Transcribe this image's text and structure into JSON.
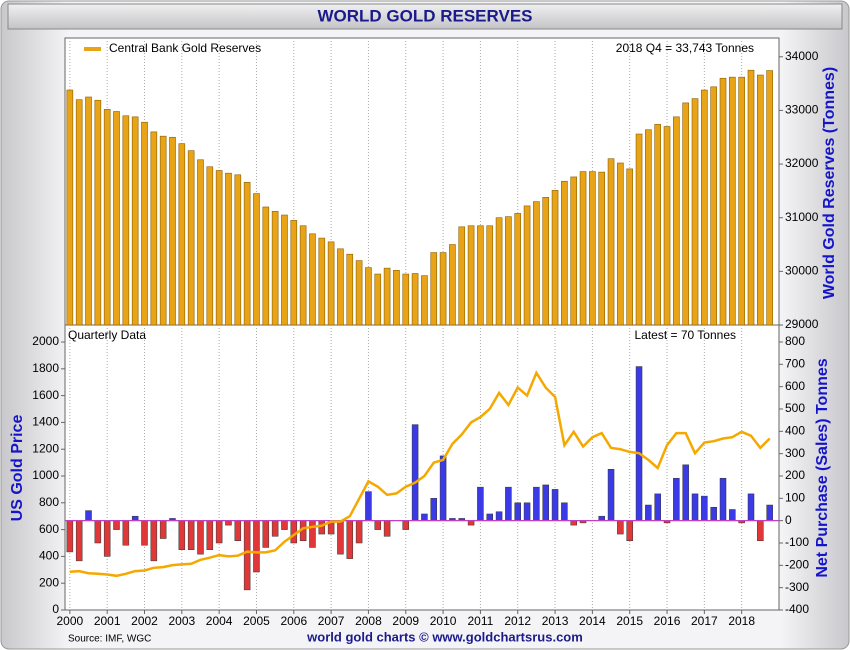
{
  "chart_data": [
    {
      "type": "bar",
      "title": "WORLD GOLD RESERVES",
      "ylabel": "World Gold Reserves (Tonnes)",
      "annotation": "2018 Q4 = 33,743 Tonnes",
      "x": [
        2000,
        2000.25,
        2000.5,
        2000.75,
        2001,
        2001.25,
        2001.5,
        2001.75,
        2002,
        2002.25,
        2002.5,
        2002.75,
        2003,
        2003.25,
        2003.5,
        2003.75,
        2004,
        2004.25,
        2004.5,
        2004.75,
        2005,
        2005.25,
        2005.5,
        2005.75,
        2006,
        2006.25,
        2006.5,
        2006.75,
        2007,
        2007.25,
        2007.5,
        2007.75,
        2008,
        2008.25,
        2008.5,
        2008.75,
        2009,
        2009.25,
        2009.5,
        2009.75,
        2010,
        2010.25,
        2010.5,
        2010.75,
        2011,
        2011.25,
        2011.5,
        2011.75,
        2012,
        2012.25,
        2012.5,
        2012.75,
        2013,
        2013.25,
        2013.5,
        2013.75,
        2014,
        2014.25,
        2014.5,
        2014.75,
        2015,
        2015.25,
        2015.5,
        2015.75,
        2016,
        2016.25,
        2016.5,
        2016.75,
        2017,
        2017.25,
        2017.5,
        2017.75,
        2018,
        2018.25,
        2018.5,
        2018.75
      ],
      "series": [
        {
          "name": "Central Bank Gold Reserves",
          "color": "#e8a317",
          "values": [
            33380,
            33200,
            33250,
            33190,
            33020,
            32980,
            32900,
            32880,
            32780,
            32600,
            32520,
            32500,
            32380,
            32250,
            32080,
            31950,
            31880,
            31830,
            31800,
            31660,
            31450,
            31200,
            31120,
            31050,
            30950,
            30850,
            30700,
            30620,
            30550,
            30420,
            30320,
            30200,
            30070,
            29950,
            30060,
            30020,
            29950,
            29960,
            29920,
            30350,
            30350,
            30500,
            30830,
            30850,
            30850,
            30850,
            31000,
            31020,
            31080,
            31220,
            31300,
            31380,
            31510,
            31680,
            31760,
            31860,
            31860,
            31850,
            32100,
            32020,
            31910,
            32560,
            32640,
            32740,
            32700,
            32880,
            33140,
            33220,
            33380,
            33440,
            33600,
            33620,
            33620,
            33750,
            33660,
            33743
          ]
        }
      ],
      "xlim": [
        1999.87,
        2019.0
      ],
      "xticks": [
        2000,
        2001,
        2002,
        2003,
        2004,
        2005,
        2006,
        2007,
        2008,
        2009,
        2010,
        2011,
        2012,
        2013,
        2014,
        2015,
        2016,
        2017,
        2018
      ],
      "ylim": [
        29000,
        34350
      ],
      "yticks": [
        29000,
        30000,
        31000,
        32000,
        33000,
        34000
      ],
      "grid": true
    },
    {
      "type": "bar_line",
      "ylabel": "US Gold Price",
      "y2label": "Net Purchase (Sales) Tonnes",
      "annotation_left": "Quarterly Data",
      "annotation_right": "Latest = 70 Tonnes",
      "source": "Source: IMF, WGC",
      "footer": "world gold charts © www.goldchartsrus.com",
      "x": [
        2000,
        2000.25,
        2000.5,
        2000.75,
        2001,
        2001.25,
        2001.5,
        2001.75,
        2002,
        2002.25,
        2002.5,
        2002.75,
        2003,
        2003.25,
        2003.5,
        2003.75,
        2004,
        2004.25,
        2004.5,
        2004.75,
        2005,
        2005.25,
        2005.5,
        2005.75,
        2006,
        2006.25,
        2006.5,
        2006.75,
        2007,
        2007.25,
        2007.5,
        2007.75,
        2008,
        2008.25,
        2008.5,
        2008.75,
        2009,
        2009.25,
        2009.5,
        2009.75,
        2010,
        2010.25,
        2010.5,
        2010.75,
        2011,
        2011.25,
        2011.5,
        2011.75,
        2012,
        2012.25,
        2012.5,
        2012.75,
        2013,
        2013.25,
        2013.5,
        2013.75,
        2014,
        2014.25,
        2014.5,
        2014.75,
        2015,
        2015.25,
        2015.5,
        2015.75,
        2016,
        2016.25,
        2016.5,
        2016.75,
        2017,
        2017.25,
        2017.5,
        2017.75,
        2018,
        2018.25,
        2018.5,
        2018.75
      ],
      "series": [
        {
          "type": "line",
          "color": "#f5a800",
          "values": [
            285,
            290,
            275,
            270,
            265,
            255,
            270,
            290,
            295,
            315,
            320,
            335,
            340,
            345,
            375,
            390,
            410,
            400,
            405,
            435,
            430,
            430,
            445,
            510,
            560,
            610,
            620,
            630,
            660,
            660,
            700,
            830,
            960,
            920,
            860,
            870,
            920,
            950,
            1000,
            1100,
            1120,
            1240,
            1310,
            1400,
            1440,
            1500,
            1620,
            1530,
            1660,
            1600,
            1770,
            1660,
            1590,
            1230,
            1330,
            1220,
            1290,
            1320,
            1210,
            1200,
            1180,
            1170,
            1120,
            1060,
            1230,
            1320,
            1320,
            1170,
            1250,
            1260,
            1280,
            1290,
            1330,
            1300,
            1210,
            1280
          ]
        },
        {
          "type": "bar",
          "axis": "y2",
          "color": "#3a3ae6",
          "negative_color": "#e03838",
          "values": [
            -140,
            -180,
            45,
            -100,
            -160,
            -40,
            -110,
            20,
            -110,
            -180,
            -80,
            10,
            -130,
            -130,
            -150,
            -130,
            -100,
            -20,
            -90,
            -310,
            -230,
            -120,
            -70,
            -40,
            -100,
            -90,
            -120,
            -60,
            -60,
            -150,
            -170,
            -100,
            130,
            -40,
            -70,
            0,
            -40,
            430,
            30,
            100,
            290,
            10,
            10,
            -20,
            150,
            30,
            40,
            150,
            80,
            80,
            150,
            160,
            140,
            80,
            -20,
            -10,
            0,
            20,
            230,
            -60,
            -90,
            690,
            70,
            120,
            -10,
            190,
            250,
            120,
            110,
            60,
            190,
            50,
            -10,
            120,
            -90,
            70
          ]
        }
      ],
      "xlim": [
        1999.87,
        2019.0
      ],
      "xticks": [
        2000,
        2001,
        2002,
        2003,
        2004,
        2005,
        2006,
        2007,
        2008,
        2009,
        2010,
        2011,
        2012,
        2013,
        2014,
        2015,
        2016,
        2017,
        2018
      ],
      "ylim": [
        0,
        2127
      ],
      "yticks": [
        0,
        200,
        400,
        600,
        800,
        1000,
        1200,
        1400,
        1600,
        1800,
        2000
      ],
      "y2lim": [
        -400,
        876
      ],
      "y2ticks": [
        -400,
        -300,
        -200,
        -100,
        0,
        100,
        200,
        300,
        400,
        500,
        600,
        700,
        800
      ],
      "grid": true
    }
  ]
}
